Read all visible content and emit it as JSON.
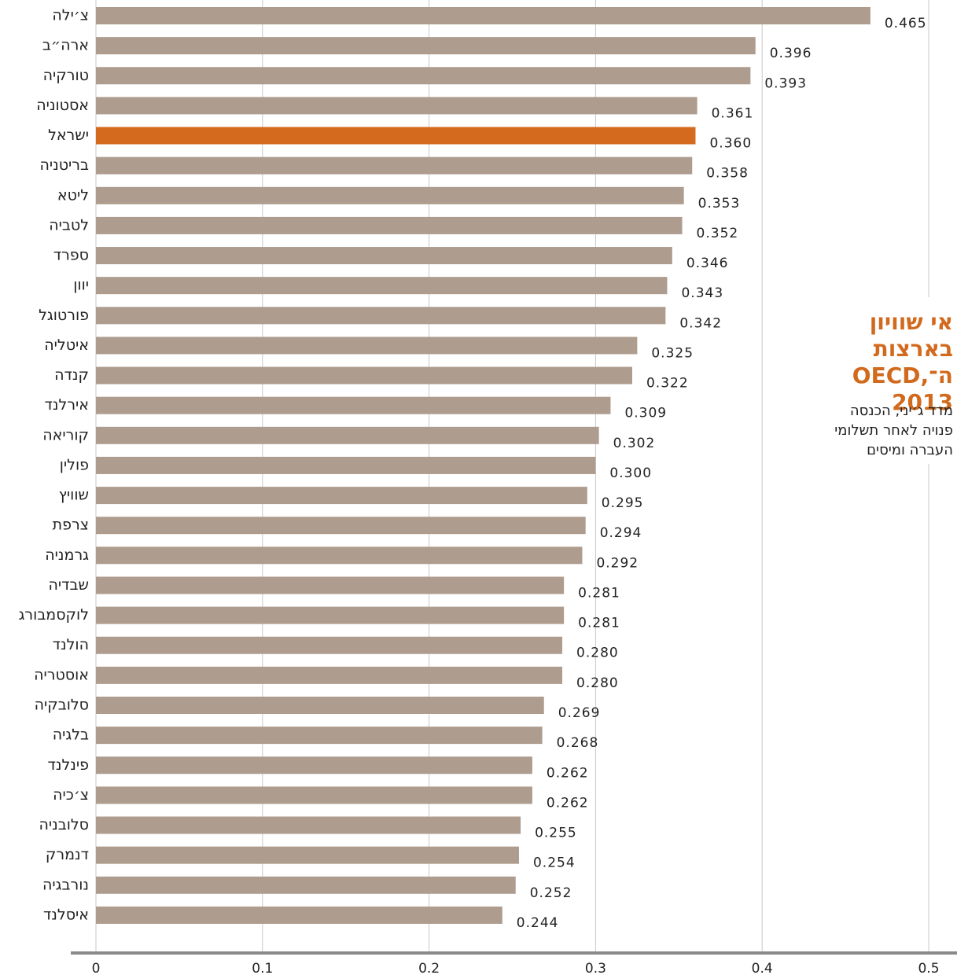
{
  "chart_data": {
    "type": "barh",
    "title": "אי שוויון בארצות ה־OECD, 2013",
    "subtitle": "מדד ג׳יני, הכנסה פנויה לאחר תשלומי העברה ומיסים",
    "categories": [
      "צ׳ילה",
      "ארה״ב",
      "טורקיה",
      "אסטוניה",
      "ישראל",
      "בריטניה",
      "ליטא",
      "לטביה",
      "ספרד",
      "יוון",
      "פורטוגל",
      "איטליה",
      "קנדה",
      "אירלנד",
      "קוריאה",
      "פולין",
      "שוויץ",
      "צרפת",
      "גרמניה",
      "שבדיה",
      "לוקסמבורג",
      "הולנד",
      "אוסטריה",
      "סלובקיה",
      "בלגיה",
      "פינלנד",
      "צ׳כיה",
      "סלובניה",
      "דנמרק",
      "נורבגיה",
      "איסלנד"
    ],
    "values": [
      0.465,
      0.396,
      0.393,
      0.361,
      0.36,
      0.358,
      0.353,
      0.352,
      0.346,
      0.343,
      0.342,
      0.325,
      0.322,
      0.309,
      0.302,
      0.3,
      0.295,
      0.294,
      0.292,
      0.281,
      0.281,
      0.28,
      0.28,
      0.269,
      0.268,
      0.262,
      0.262,
      0.255,
      0.254,
      0.252,
      0.244
    ],
    "value_labels": [
      "0.465",
      "0.396",
      "0.393",
      "0.361",
      "0.360",
      "0.358",
      "0.353",
      "0.352",
      "0.346",
      "0.343",
      "0.342",
      "0.325",
      "0.322",
      "0.309",
      "0.302",
      "0.300",
      "0.295",
      "0.294",
      "0.292",
      "0.281",
      "0.281",
      "0.280",
      "0.280",
      "0.269",
      "0.268",
      "0.262",
      "0.262",
      "0.255",
      "0.254",
      "0.252",
      "0.244"
    ],
    "colors": [
      "#ae9c8e",
      "#ae9c8e",
      "#ae9c8e",
      "#ae9c8e",
      "#d46a1e",
      "#ae9c8e",
      "#ae9c8e",
      "#ae9c8e",
      "#ae9c8e",
      "#ae9c8e",
      "#ae9c8e",
      "#ae9c8e",
      "#ae9c8e",
      "#ae9c8e",
      "#ae9c8e",
      "#ae9c8e",
      "#ae9c8e",
      "#ae9c8e",
      "#ae9c8e",
      "#ae9c8e",
      "#ae9c8e",
      "#ae9c8e",
      "#ae9c8e",
      "#ae9c8e",
      "#ae9c8e",
      "#ae9c8e",
      "#ae9c8e",
      "#ae9c8e",
      "#ae9c8e",
      "#ae9c8e",
      "#ae9c8e"
    ],
    "xlim": [
      0,
      0.5
    ],
    "xticks": [
      0,
      0.1,
      0.2,
      0.3,
      0.4,
      0.5
    ],
    "grid": true
  }
}
